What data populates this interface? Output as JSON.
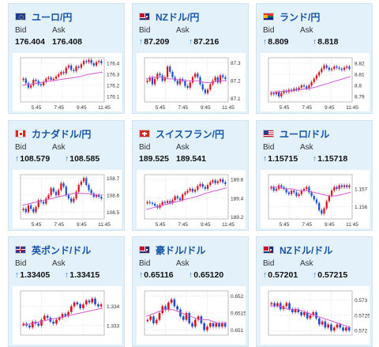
{
  "labels": {
    "bid": "Bid",
    "ask": "Ask"
  },
  "colors": {
    "up": "#d8161d",
    "down": "#1f4fd0",
    "ma_short": "#d35bd0",
    "ma_long": "#3a9ad9",
    "grid": "#cfcfcf",
    "pair": "#1554a8"
  },
  "cards": [
    {
      "pair": "ユーロ/円",
      "flag": "eu-flag-icon",
      "bid": "176.404",
      "ask": "176.408",
      "bid_up": false,
      "ask_up": false,
      "chart_data": {
        "type": "candlestick",
        "x_ticks": [
          "5:45",
          "7:45",
          "9:45",
          "11:45"
        ],
        "y_ticks": [
          "176.4",
          "176.3",
          "176.2",
          "176.1"
        ],
        "ylim": [
          176.05,
          176.45
        ],
        "closes": [
          176.26,
          176.22,
          176.18,
          176.2,
          176.25,
          176.24,
          176.21,
          176.2,
          176.23,
          176.26,
          176.27,
          176.25,
          176.26,
          176.28,
          176.3,
          176.32,
          176.31,
          176.36,
          176.38,
          176.34,
          176.33,
          176.37,
          176.36,
          176.39,
          176.42,
          176.41,
          176.43,
          176.4,
          176.38,
          176.41,
          176.42,
          176.4
        ],
        "ma": [
          176.2,
          176.21,
          176.22,
          176.23,
          176.24,
          176.25,
          176.26,
          176.27,
          176.28,
          176.3,
          176.31,
          176.32
        ]
      }
    },
    {
      "pair": "NZドル/円",
      "flag": "nz-flag-icon",
      "bid": "87.209",
      "ask": "87.216",
      "bid_up": true,
      "ask_up": true,
      "chart_data": {
        "type": "candlestick",
        "x_ticks": [
          "5:45",
          "7:45",
          "9:45",
          "11:45"
        ],
        "y_ticks": [
          "87.3",
          "87.2",
          "87.1"
        ],
        "ylim": [
          87.08,
          87.33
        ],
        "closes": [
          87.2,
          87.22,
          87.18,
          87.21,
          87.24,
          87.23,
          87.2,
          87.22,
          87.28,
          87.25,
          87.22,
          87.2,
          87.18,
          87.21,
          87.2,
          87.17,
          87.16,
          87.19,
          87.22,
          87.24,
          87.22,
          87.18,
          87.15,
          87.13,
          87.15,
          87.18,
          87.2,
          87.22,
          87.19,
          87.23,
          87.22,
          87.21
        ],
        "ma": [
          87.21,
          87.22,
          87.22,
          87.21,
          87.21,
          87.2,
          87.2,
          87.2,
          87.19,
          87.19,
          87.2,
          87.2
        ]
      }
    },
    {
      "pair": "ランド/円",
      "flag": "za-flag-icon",
      "bid": "8.809",
      "ask": "8.818",
      "bid_up": true,
      "ask_up": true,
      "chart_data": {
        "type": "candlestick",
        "x_ticks": [
          "5:45",
          "7:45",
          "9:45",
          "11:45"
        ],
        "y_ticks": [
          "8.82",
          "8.81",
          "8.8",
          "8.79"
        ],
        "ylim": [
          8.785,
          8.825
        ],
        "closes": [
          8.793,
          8.792,
          8.794,
          8.79,
          8.793,
          8.795,
          8.794,
          8.796,
          8.795,
          8.797,
          8.796,
          8.798,
          8.8,
          8.799,
          8.797,
          8.8,
          8.803,
          8.806,
          8.809,
          8.812,
          8.815,
          8.818,
          8.816,
          8.814,
          8.815,
          8.817,
          8.816,
          8.815,
          8.814,
          8.816,
          8.817,
          8.815
        ],
        "ma": [
          8.794,
          8.794,
          8.795,
          8.795,
          8.796,
          8.797,
          8.798,
          8.8,
          8.802,
          8.804,
          8.806,
          8.808
        ]
      }
    },
    {
      "pair": "カナダドル/円",
      "flag": "ca-flag-icon",
      "bid": "108.579",
      "ask": "108.585",
      "bid_up": true,
      "ask_up": true,
      "chart_data": {
        "type": "candlestick",
        "x_ticks": [
          "5:45",
          "7:45",
          "9:45",
          "11:45"
        ],
        "y_ticks": [
          "108.7",
          "108.6",
          "108.5"
        ],
        "ylim": [
          108.46,
          108.72
        ],
        "closes": [
          108.52,
          108.5,
          108.54,
          108.52,
          108.5,
          108.53,
          108.57,
          108.56,
          108.55,
          108.58,
          108.6,
          108.64,
          108.62,
          108.6,
          108.63,
          108.67,
          108.65,
          108.6,
          108.58,
          108.56,
          108.58,
          108.62,
          108.66,
          108.68,
          108.7,
          108.66,
          108.63,
          108.61,
          108.59,
          108.6,
          108.59,
          108.58
        ],
        "ma": [
          108.54,
          108.55,
          108.56,
          108.57,
          108.58,
          108.59,
          108.6,
          108.61,
          108.61,
          108.61,
          108.6,
          108.6
        ]
      }
    },
    {
      "pair": "スイスフラン/円",
      "flag": "ch-flag-icon",
      "bid": "189.525",
      "ask": "189.541",
      "bid_up": false,
      "ask_up": false,
      "chart_data": {
        "type": "candlestick",
        "x_ticks": [
          "5:45",
          "7:45",
          "9:45",
          "11:45"
        ],
        "y_ticks": [
          "189.6",
          "189.4",
          "189.2"
        ],
        "ylim": [
          189.18,
          189.65
        ],
        "closes": [
          189.36,
          189.35,
          189.34,
          189.32,
          189.3,
          189.33,
          189.36,
          189.35,
          189.37,
          189.35,
          189.38,
          189.42,
          189.4,
          189.38,
          189.44,
          189.46,
          189.48,
          189.5,
          189.47,
          189.49,
          189.53,
          189.55,
          189.52,
          189.5,
          189.54,
          189.57,
          189.59,
          189.56,
          189.58,
          189.6,
          189.57,
          189.55
        ],
        "ma": [
          189.28,
          189.3,
          189.32,
          189.34,
          189.36,
          189.38,
          189.4,
          189.42,
          189.45,
          189.47,
          189.49,
          189.51
        ]
      }
    },
    {
      "pair": "ユーロ/ドル",
      "flag": "us-flag-icon",
      "bid": "1.15715",
      "ask": "1.15718",
      "bid_up": true,
      "ask_up": true,
      "chart_data": {
        "type": "candlestick",
        "x_ticks": [
          "5:45",
          "7:45",
          "9:45",
          "11:45"
        ],
        "y_ticks": [
          "1.157",
          "1.156"
        ],
        "ylim": [
          1.1553,
          1.1578
        ],
        "closes": [
          1.1571,
          1.1569,
          1.157,
          1.1572,
          1.1571,
          1.157,
          1.1568,
          1.1567,
          1.1569,
          1.1568,
          1.1566,
          1.1567,
          1.1569,
          1.157,
          1.1571,
          1.1568,
          1.1566,
          1.1564,
          1.1562,
          1.1558,
          1.1556,
          1.1559,
          1.1563,
          1.1566,
          1.1569,
          1.1571,
          1.157,
          1.1572,
          1.1571,
          1.1572,
          1.1571,
          1.1572
        ],
        "ma": [
          1.1571,
          1.1571,
          1.157,
          1.157,
          1.1569,
          1.1569,
          1.1568,
          1.1567,
          1.1566,
          1.1566,
          1.1567,
          1.1568
        ]
      }
    },
    {
      "pair": "英ポンド/ドル",
      "flag": "gb-flag-icon",
      "bid": "1.33405",
      "ask": "1.33415",
      "bid_up": true,
      "ask_up": true,
      "chart_data": {
        "type": "candlestick",
        "x_ticks": [],
        "y_ticks": [
          "1.334",
          "1.333"
        ],
        "ylim": [
          1.3325,
          1.3348
        ],
        "closes": [
          1.3331,
          1.333,
          1.3329,
          1.3332,
          1.3331,
          1.333,
          1.3333,
          1.3335,
          1.3334,
          1.3332,
          1.3331,
          1.3333,
          1.3334,
          1.3336,
          1.3335,
          1.3337,
          1.334,
          1.3342,
          1.3341,
          1.3339,
          1.3341,
          1.3343,
          1.3342,
          1.3344,
          1.3341,
          1.334,
          1.3341
        ],
        "ma": [
          1.333,
          1.3331,
          1.3332,
          1.3333,
          1.3334,
          1.3335,
          1.3336,
          1.3337,
          1.3338,
          1.3339
        ]
      }
    },
    {
      "pair": "豪ドル/ドル",
      "flag": "au-flag-icon",
      "bid": "0.65116",
      "ask": "0.65120",
      "bid_up": true,
      "ask_up": true,
      "chart_data": {
        "type": "candlestick",
        "x_ticks": [],
        "y_ticks": [
          "0.652",
          "0.6515",
          "0.651"
        ],
        "ylim": [
          0.65085,
          0.65215
        ],
        "closes": [
          0.6513,
          0.6514,
          0.6512,
          0.6513,
          0.6515,
          0.6517,
          0.6516,
          0.6518,
          0.6519,
          0.6517,
          0.6516,
          0.6514,
          0.6513,
          0.6515,
          0.6512,
          0.6511,
          0.6513,
          0.6514,
          0.6512,
          0.651,
          0.6511,
          0.6512,
          0.6511,
          0.6512,
          0.6511,
          0.6512,
          0.6511
        ],
        "ma": [
          0.6514,
          0.6515,
          0.6516,
          0.6516,
          0.6515,
          0.6514,
          0.6513,
          0.6513,
          0.6512,
          0.6512
        ]
      }
    },
    {
      "pair": "NZドル/ドル",
      "flag": "nz-flag-icon",
      "bid": "0.57201",
      "ask": "0.57215",
      "bid_up": true,
      "ask_up": true,
      "chart_data": {
        "type": "candlestick",
        "x_ticks": [],
        "y_ticks": [
          "0.573",
          "0.5725",
          "0.572"
        ],
        "ylim": [
          0.57185,
          0.5733
        ],
        "closes": [
          0.5729,
          0.5728,
          0.5729,
          0.5727,
          0.5728,
          0.5729,
          0.5727,
          0.5726,
          0.5727,
          0.5726,
          0.5725,
          0.5726,
          0.5724,
          0.5725,
          0.5726,
          0.5724,
          0.5722,
          0.5723,
          0.5721,
          0.5722,
          0.572,
          0.5721,
          0.5722,
          0.5721,
          0.572,
          0.5721,
          0.572
        ],
        "ma": [
          0.5728,
          0.5728,
          0.5727,
          0.5727,
          0.5726,
          0.5725,
          0.5724,
          0.5723,
          0.5722,
          0.5721
        ]
      }
    }
  ]
}
